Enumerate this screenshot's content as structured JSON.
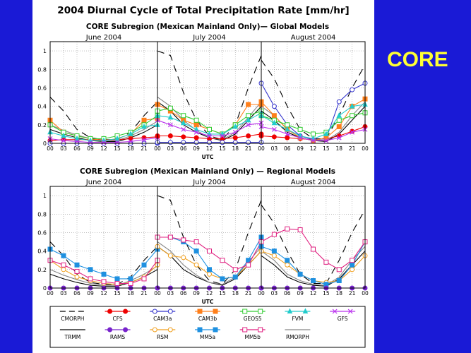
{
  "slide": {
    "side_label": "CORE"
  },
  "figure_title": "2004 Diurnal Cycle of Total Precipitation Rate [mm/hr]",
  "legend": [
    {
      "name": "CMORPH",
      "color": "#000000",
      "marker": "none",
      "dash": "10,7"
    },
    {
      "name": "CFS",
      "color": "#ee0000",
      "marker": "circle",
      "fill": true
    },
    {
      "name": "CAM3a",
      "color": "#3333cc",
      "marker": "circle",
      "fill": false
    },
    {
      "name": "CAM3b",
      "color": "#ff7f1a",
      "marker": "square",
      "fill": true
    },
    {
      "name": "GEOS5",
      "color": "#33cc33",
      "marker": "square",
      "fill": false
    },
    {
      "name": "FVM",
      "color": "#22cccc",
      "marker": "triangle",
      "fill": true
    },
    {
      "name": "GFS",
      "color": "#bb33ee",
      "marker": "x",
      "fill": false
    },
    {
      "name": "TRMM",
      "color": "#000000",
      "marker": "none",
      "dash": ""
    },
    {
      "name": "RAMS",
      "color": "#7722cc",
      "marker": "circle",
      "fill": true
    },
    {
      "name": "RSM",
      "color": "#f0a020",
      "marker": "circle",
      "fill": false
    },
    {
      "name": "MM5a",
      "color": "#1e90e0",
      "marker": "square",
      "fill": true
    },
    {
      "name": "MM5b",
      "color": "#e02080",
      "marker": "square",
      "fill": false
    },
    {
      "name": "RMORPH",
      "color": "#888888",
      "marker": "none",
      "dash": ""
    }
  ],
  "chart_data": [
    {
      "type": "line",
      "title": "CORE Subregion (Mexican Mainland Only)— Global Models",
      "xlabel": "UTC",
      "ylim": [
        0,
        1.1
      ],
      "yticks": [
        0,
        0.2,
        0.4,
        0.6,
        0.8,
        1
      ],
      "ytick_labels": [
        "0",
        "0.2",
        "0.4",
        "0.6",
        "0.8",
        "1"
      ],
      "xtick_labels": [
        "00",
        "03",
        "06",
        "09",
        "12",
        "15",
        "18",
        "21",
        "00"
      ],
      "month_labels": [
        "June 2004",
        "July 2004",
        "August 2004"
      ],
      "x": [
        0,
        3,
        6,
        9,
        12,
        15,
        18,
        21,
        24
      ],
      "series": [
        {
          "name": "CMORPH",
          "months": [
            [
              0.5,
              0.35,
              0.15,
              0.06,
              0.04,
              0.04,
              0.12,
              0.3,
              0.45
            ],
            [
              1.0,
              0.95,
              0.55,
              0.25,
              0.08,
              0.04,
              0.2,
              0.6,
              0.95
            ],
            [
              0.9,
              0.7,
              0.4,
              0.15,
              0.05,
              0.05,
              0.3,
              0.6,
              0.85
            ]
          ]
        },
        {
          "name": "TRMM",
          "months": [
            [
              0.15,
              0.1,
              0.06,
              0.03,
              0.02,
              0.02,
              0.06,
              0.12,
              0.2
            ],
            [
              0.45,
              0.35,
              0.2,
              0.12,
              0.06,
              0.03,
              0.1,
              0.25,
              0.4
            ],
            [
              0.35,
              0.25,
              0.12,
              0.06,
              0.03,
              0.02,
              0.1,
              0.25,
              0.4
            ]
          ]
        },
        {
          "name": "RMORPH",
          "months": [
            [
              0.2,
              0.14,
              0.09,
              0.05,
              0.03,
              0.03,
              0.08,
              0.15,
              0.24
            ],
            [
              0.5,
              0.4,
              0.25,
              0.14,
              0.06,
              0.04,
              0.12,
              0.28,
              0.45
            ],
            [
              0.4,
              0.3,
              0.15,
              0.08,
              0.04,
              0.03,
              0.12,
              0.3,
              0.45
            ]
          ]
        },
        {
          "name": "CFS",
          "months": [
            [
              0.03,
              0.04,
              0.04,
              0.04,
              0.04,
              0.04,
              0.05,
              0.06,
              0.07
            ],
            [
              0.08,
              0.08,
              0.07,
              0.06,
              0.05,
              0.05,
              0.06,
              0.08,
              0.1
            ],
            [
              0.08,
              0.07,
              0.06,
              0.05,
              0.04,
              0.05,
              0.08,
              0.13,
              0.18
            ]
          ]
        },
        {
          "name": "CAM3a",
          "months": [
            [
              0.0,
              0.0,
              0.0,
              0.0,
              0.0,
              0.0,
              0.0,
              0.0,
              0.0
            ],
            [
              0.01,
              0.01,
              0.01,
              0.01,
              0.01,
              0.01,
              0.01,
              0.01,
              0.01
            ],
            [
              0.65,
              0.4,
              0.2,
              0.08,
              0.04,
              0.05,
              0.45,
              0.58,
              0.65
            ]
          ]
        },
        {
          "name": "CAM3b",
          "months": [
            [
              0.25,
              0.12,
              0.08,
              0.05,
              0.03,
              0.05,
              0.1,
              0.25,
              0.27
            ],
            [
              0.42,
              0.35,
              0.25,
              0.2,
              0.15,
              0.1,
              0.2,
              0.42,
              0.42
            ],
            [
              0.45,
              0.3,
              0.15,
              0.06,
              0.03,
              0.06,
              0.18,
              0.4,
              0.48
            ]
          ]
        },
        {
          "name": "GEOS5",
          "months": [
            [
              0.2,
              0.12,
              0.08,
              0.05,
              0.05,
              0.08,
              0.12,
              0.2,
              0.3
            ],
            [
              0.35,
              0.38,
              0.3,
              0.25,
              0.15,
              0.1,
              0.2,
              0.3,
              0.35
            ],
            [
              0.3,
              0.25,
              0.2,
              0.15,
              0.1,
              0.12,
              0.25,
              0.3,
              0.33
            ]
          ]
        },
        {
          "name": "FVM",
          "months": [
            [
              0.12,
              0.08,
              0.05,
              0.03,
              0.03,
              0.05,
              0.1,
              0.18,
              0.2
            ],
            [
              0.3,
              0.28,
              0.22,
              0.15,
              0.1,
              0.1,
              0.18,
              0.25,
              0.33
            ],
            [
              0.3,
              0.22,
              0.15,
              0.08,
              0.05,
              0.1,
              0.3,
              0.4,
              0.42
            ]
          ]
        },
        {
          "name": "GFS",
          "months": [
            [
              0.05,
              0.03,
              0.02,
              0.01,
              0.01,
              0.01,
              0.02,
              0.04,
              0.06
            ],
            [
              0.25,
              0.2,
              0.15,
              0.12,
              0.08,
              0.08,
              0.12,
              0.2,
              0.22
            ],
            [
              0.18,
              0.15,
              0.1,
              0.06,
              0.03,
              0.03,
              0.06,
              0.12,
              0.15
            ]
          ]
        }
      ]
    },
    {
      "type": "line",
      "title": "CORE Subregion (Mexican Mainland Only) — Regional Models",
      "xlabel": "UTC",
      "ylim": [
        0,
        1.1
      ],
      "yticks": [
        0,
        0.2,
        0.4,
        0.6,
        0.8,
        1
      ],
      "ytick_labels": [
        "0",
        "0.2",
        "0.4",
        "0.6",
        "0.8",
        "1"
      ],
      "xtick_labels": [
        "00",
        "03",
        "06",
        "09",
        "12",
        "15",
        "18",
        "21",
        "00"
      ],
      "month_labels": [
        "June 2004",
        "July 2004",
        "August 2004"
      ],
      "x": [
        0,
        3,
        6,
        9,
        12,
        15,
        18,
        21,
        24
      ],
      "series": [
        {
          "name": "CMORPH",
          "months": [
            [
              0.5,
              0.35,
              0.15,
              0.06,
              0.04,
              0.04,
              0.12,
              0.3,
              0.45
            ],
            [
              1.0,
              0.95,
              0.55,
              0.25,
              0.08,
              0.04,
              0.2,
              0.6,
              0.95
            ],
            [
              0.9,
              0.7,
              0.4,
              0.15,
              0.05,
              0.05,
              0.3,
              0.6,
              0.85
            ]
          ]
        },
        {
          "name": "TRMM",
          "months": [
            [
              0.15,
              0.1,
              0.06,
              0.03,
              0.02,
              0.02,
              0.06,
              0.12,
              0.2
            ],
            [
              0.45,
              0.35,
              0.2,
              0.12,
              0.06,
              0.03,
              0.1,
              0.25,
              0.4
            ],
            [
              0.35,
              0.25,
              0.12,
              0.06,
              0.03,
              0.02,
              0.1,
              0.25,
              0.4
            ]
          ]
        },
        {
          "name": "RMORPH",
          "months": [
            [
              0.2,
              0.14,
              0.09,
              0.05,
              0.03,
              0.03,
              0.08,
              0.15,
              0.24
            ],
            [
              0.5,
              0.4,
              0.25,
              0.14,
              0.06,
              0.04,
              0.12,
              0.28,
              0.45
            ],
            [
              0.4,
              0.3,
              0.15,
              0.08,
              0.04,
              0.03,
              0.12,
              0.3,
              0.45
            ]
          ]
        },
        {
          "name": "RSM",
          "months": [
            [
              0.3,
              0.2,
              0.12,
              0.08,
              0.05,
              0.04,
              0.06,
              0.12,
              0.25
            ],
            [
              0.45,
              0.35,
              0.33,
              0.25,
              0.15,
              0.1,
              0.12,
              0.25,
              0.4
            ],
            [
              0.4,
              0.35,
              0.25,
              0.15,
              0.08,
              0.06,
              0.08,
              0.2,
              0.35
            ]
          ]
        },
        {
          "name": "MM5a",
          "months": [
            [
              0.42,
              0.35,
              0.25,
              0.2,
              0.15,
              0.1,
              0.1,
              0.25,
              0.42
            ],
            [
              0.55,
              0.55,
              0.5,
              0.4,
              0.2,
              0.1,
              0.12,
              0.3,
              0.55
            ],
            [
              0.45,
              0.4,
              0.3,
              0.15,
              0.08,
              0.04,
              0.08,
              0.25,
              0.5
            ]
          ]
        },
        {
          "name": "MM5b",
          "months": [
            [
              0.3,
              0.25,
              0.18,
              0.1,
              0.07,
              0.05,
              0.05,
              0.1,
              0.3
            ],
            [
              0.55,
              0.55,
              0.52,
              0.5,
              0.4,
              0.3,
              0.2,
              0.25,
              0.5
            ],
            [
              0.5,
              0.58,
              0.64,
              0.63,
              0.42,
              0.28,
              0.2,
              0.3,
              0.5
            ]
          ]
        },
        {
          "name": "RAMS",
          "months": [
            [
              0.0,
              0.0,
              0.0,
              0.0,
              0.0,
              0.0,
              0.0,
              0.0,
              0.0
            ],
            [
              0.0,
              0.0,
              0.0,
              0.0,
              0.0,
              0.0,
              0.0,
              0.0,
              0.0
            ],
            [
              0.0,
              0.0,
              0.0,
              0.0,
              0.0,
              0.0,
              0.0,
              0.0,
              0.0
            ]
          ]
        }
      ]
    }
  ]
}
